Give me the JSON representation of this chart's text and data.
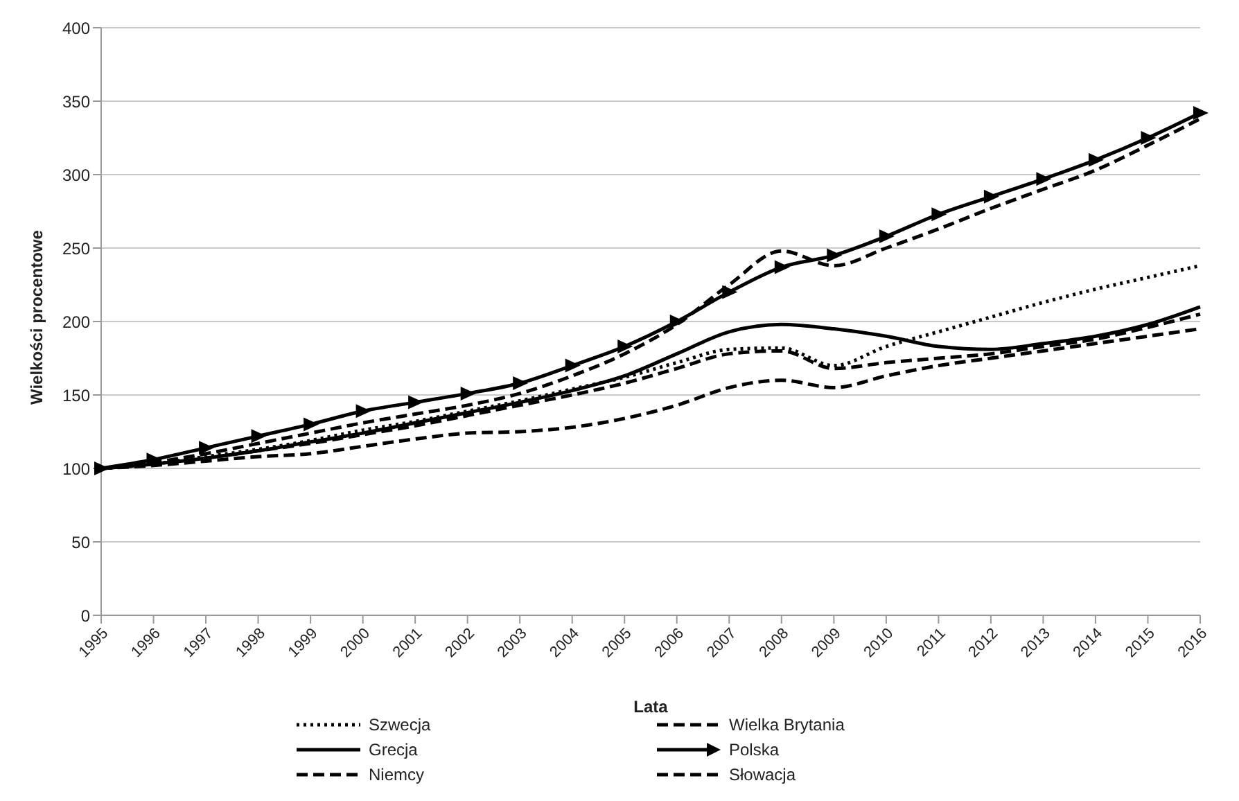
{
  "chart_data": {
    "type": "line",
    "xlabel": "Lata",
    "ylabel": "Wielkości procentowe",
    "categories": [
      "1995",
      "1996",
      "1997",
      "1998",
      "1999",
      "2000",
      "2001",
      "2002",
      "2003",
      "2004",
      "2005",
      "2006",
      "2007",
      "2008",
      "2009",
      "2010",
      "2011",
      "2012",
      "2013",
      "2014",
      "2015",
      "2016"
    ],
    "ylim": [
      0,
      400
    ],
    "yticks": [
      0,
      50,
      100,
      150,
      200,
      250,
      300,
      350,
      400
    ],
    "grid": "y",
    "legend": "bottom",
    "marker": "none",
    "series": [
      {
        "name": "Szwecja",
        "color": "#000000",
        "line_style": "dotted",
        "values": [
          100,
          103,
          108,
          113,
          119,
          126,
          132,
          139,
          146,
          154,
          162,
          172,
          181,
          182,
          170,
          183,
          193,
          203,
          213,
          222,
          230,
          238
        ]
      },
      {
        "name": "Wielka Brytania",
        "color": "#000000",
        "line_style": "dashed",
        "values": [
          100,
          103,
          107,
          112,
          117,
          123,
          129,
          136,
          143,
          150,
          158,
          168,
          178,
          180,
          168,
          172,
          175,
          178,
          183,
          188,
          196,
          205
        ]
      },
      {
        "name": "Grecja",
        "color": "#000000",
        "line_style": "solid",
        "values": [
          100,
          103,
          107,
          112,
          118,
          124,
          131,
          138,
          145,
          153,
          163,
          178,
          193,
          198,
          195,
          190,
          183,
          181,
          185,
          190,
          198,
          210
        ]
      },
      {
        "name": "Polska",
        "color": "#000000",
        "line_style": "solid",
        "marker": "triangle",
        "values": [
          100,
          106,
          114,
          122,
          130,
          139,
          145,
          151,
          158,
          170,
          183,
          200,
          220,
          237,
          245,
          258,
          273,
          285,
          297,
          310,
          325,
          342
        ]
      },
      {
        "name": "Niemcy",
        "color": "#000000",
        "line_style": "dashed",
        "values": [
          100,
          102,
          105,
          108,
          110,
          115,
          120,
          124,
          125,
          128,
          134,
          143,
          155,
          160,
          155,
          163,
          170,
          175,
          180,
          185,
          190,
          195
        ]
      },
      {
        "name": "Słowacja",
        "color": "#000000",
        "line_style": "dashed",
        "values": [
          100,
          104,
          110,
          117,
          124,
          131,
          137,
          143,
          151,
          163,
          178,
          198,
          225,
          248,
          238,
          250,
          263,
          277,
          290,
          303,
          320,
          338
        ]
      }
    ]
  }
}
